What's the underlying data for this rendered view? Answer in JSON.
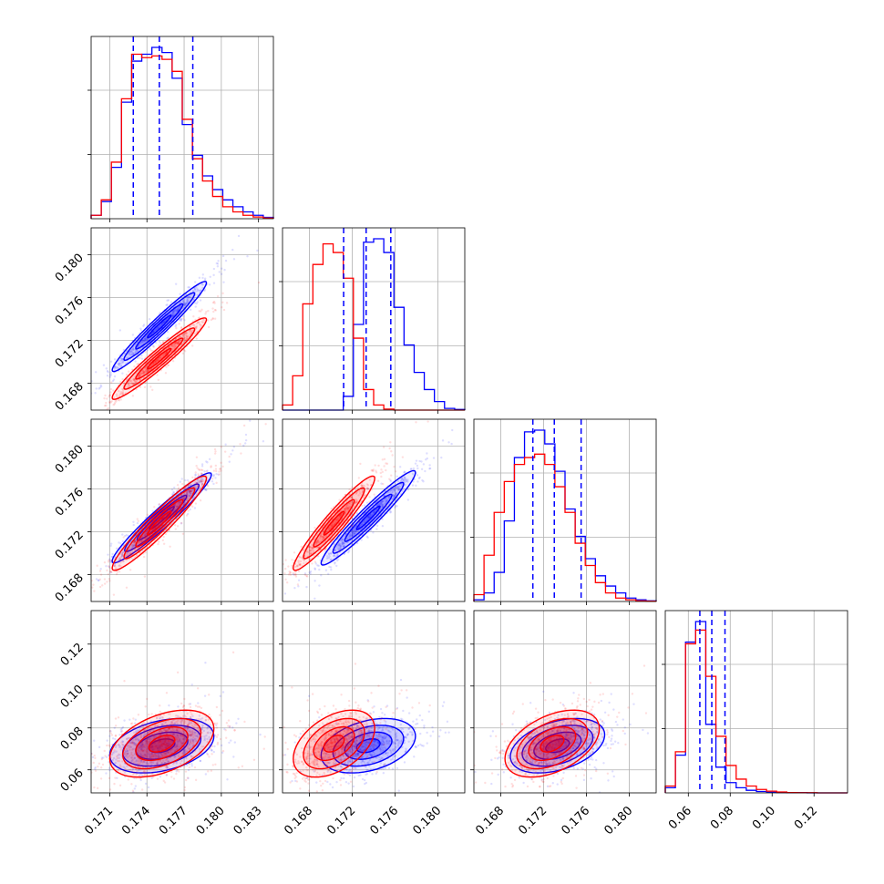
{
  "chart_data": {
    "type": "corner",
    "grid": true,
    "colors": {
      "a": "#0000ff",
      "b": "#ff0000"
    },
    "axes": {
      "p0": {
        "lim": [
          0.1695,
          0.1842
        ],
        "ticks": [
          "0.171",
          "0.174",
          "0.177",
          "0.180",
          "0.183"
        ]
      },
      "p1": {
        "lim": [
          0.1655,
          0.1825
        ],
        "ticks": [
          "0.168",
          "0.172",
          "0.176",
          "0.180"
        ]
      },
      "p2": {
        "lim": [
          0.1655,
          0.1825
        ],
        "ticks": [
          "0.168",
          "0.172",
          "0.176",
          "0.180"
        ]
      },
      "p3": {
        "lim": [
          0.049,
          0.136
        ],
        "ticks": [
          "0.06",
          "0.08",
          "0.10",
          "0.12"
        ]
      }
    },
    "y_ticks": {
      "p1": [
        "0.168",
        "0.172",
        "0.176",
        "0.180"
      ],
      "p2": [
        "0.168",
        "0.172",
        "0.176",
        "0.180"
      ],
      "p3": [
        "0.06",
        "0.08",
        "0.10",
        "0.12"
      ]
    },
    "marginals": [
      {
        "param": "p0",
        "quantiles": [
          0.1729,
          0.175,
          0.1777
        ],
        "series": [
          {
            "name": "blue",
            "values": [
              0.02,
              0.1,
              0.3,
              0.68,
              0.92,
              0.96,
              1.0,
              0.97,
              0.82,
              0.55,
              0.37,
              0.25,
              0.17,
              0.11,
              0.07,
              0.04,
              0.02,
              0.008
            ]
          },
          {
            "name": "red",
            "values": [
              0.02,
              0.11,
              0.33,
              0.7,
              0.96,
              0.94,
              0.95,
              0.93,
              0.86,
              0.58,
              0.35,
              0.22,
              0.13,
              0.07,
              0.04,
              0.02,
              0.01,
              0.004
            ]
          }
        ]
      },
      {
        "param": "p1",
        "quantiles": [
          0.1712,
          0.1733,
          0.1756
        ],
        "series": [
          {
            "name": "blue",
            "values": [
              0.0,
              0.0,
              0.0,
              0.0,
              0.0,
              0.0,
              0.08,
              0.5,
              0.98,
              1.0,
              0.92,
              0.6,
              0.38,
              0.22,
              0.12,
              0.05,
              0.01,
              0.004
            ]
          },
          {
            "name": "red",
            "values": [
              0.03,
              0.2,
              0.62,
              0.85,
              0.97,
              0.92,
              0.77,
              0.42,
              0.12,
              0.03,
              0.006,
              0.0,
              0.0,
              0.0,
              0.0,
              0.0,
              0.0,
              0.0
            ]
          }
        ]
      },
      {
        "param": "p2",
        "quantiles": [
          0.171,
          0.173,
          0.1755
        ],
        "series": [
          {
            "name": "blue",
            "values": [
              0.01,
              0.05,
              0.17,
              0.47,
              0.84,
              0.99,
              1.0,
              0.92,
              0.76,
              0.54,
              0.38,
              0.25,
              0.15,
              0.09,
              0.05,
              0.02,
              0.01,
              0.004
            ]
          },
          {
            "name": "red",
            "values": [
              0.04,
              0.27,
              0.52,
              0.7,
              0.8,
              0.84,
              0.86,
              0.8,
              0.67,
              0.52,
              0.34,
              0.21,
              0.11,
              0.05,
              0.02,
              0.01,
              0.004,
              0.002
            ]
          }
        ]
      },
      {
        "param": "p3",
        "quantiles": [
          0.0655,
          0.0712,
          0.0775
        ],
        "series": [
          {
            "name": "blue",
            "values": [
              0.03,
              0.22,
              0.88,
              1.0,
              0.4,
              0.15,
              0.06,
              0.03,
              0.015,
              0.008,
              0.004,
              0.002,
              0.001,
              0.001,
              0.0,
              0.0,
              0.0,
              0.0
            ]
          },
          {
            "name": "red",
            "values": [
              0.04,
              0.24,
              0.87,
              0.95,
              0.68,
              0.33,
              0.16,
              0.08,
              0.04,
              0.02,
              0.01,
              0.005,
              0.002,
              0.001,
              0.001,
              0.0,
              0.0,
              0.0
            ]
          }
        ]
      }
    ],
    "joints": [
      {
        "x": "p0",
        "y": "p1",
        "blue": {
          "mx": 0.175,
          "my": 0.1733,
          "sx": 0.0019,
          "sy": 0.0021,
          "rho": 0.97
        },
        "red": {
          "mx": 0.175,
          "my": 0.1703,
          "sx": 0.0019,
          "sy": 0.0019,
          "rho": 0.96
        }
      },
      {
        "x": "p0",
        "y": "p2",
        "blue": {
          "mx": 0.1752,
          "my": 0.1733,
          "sx": 0.002,
          "sy": 0.0021,
          "rho": 0.96
        },
        "red": {
          "mx": 0.175,
          "my": 0.1728,
          "sx": 0.0019,
          "sy": 0.0022,
          "rho": 0.95
        }
      },
      {
        "x": "p1",
        "y": "p2",
        "blue": {
          "mx": 0.1735,
          "my": 0.1733,
          "sx": 0.0022,
          "sy": 0.0022,
          "rho": 0.96
        },
        "red": {
          "mx": 0.1703,
          "my": 0.1728,
          "sx": 0.0019,
          "sy": 0.0022,
          "rho": 0.95
        }
      },
      {
        "x": "p0",
        "y": "p3",
        "blue": {
          "mx": 0.1752,
          "my": 0.0715,
          "sx": 0.0021,
          "sy": 0.0065,
          "rho": 0.35
        },
        "red": {
          "mx": 0.1752,
          "my": 0.0725,
          "sx": 0.0021,
          "sy": 0.008,
          "rho": 0.45
        }
      },
      {
        "x": "p1",
        "y": "p3",
        "blue": {
          "mx": 0.1735,
          "my": 0.0715,
          "sx": 0.0022,
          "sy": 0.0065,
          "rho": 0.35
        },
        "red": {
          "mx": 0.1703,
          "my": 0.0725,
          "sx": 0.0019,
          "sy": 0.008,
          "rho": 0.45
        }
      },
      {
        "x": "p2",
        "y": "p3",
        "blue": {
          "mx": 0.1733,
          "my": 0.0715,
          "sx": 0.0022,
          "sy": 0.0065,
          "rho": 0.4
        },
        "red": {
          "mx": 0.1728,
          "my": 0.0725,
          "sx": 0.0022,
          "sy": 0.008,
          "rho": 0.45
        }
      }
    ],
    "contour_levels_sigma": [
      0.5,
      1.0,
      1.5,
      2.0
    ]
  }
}
